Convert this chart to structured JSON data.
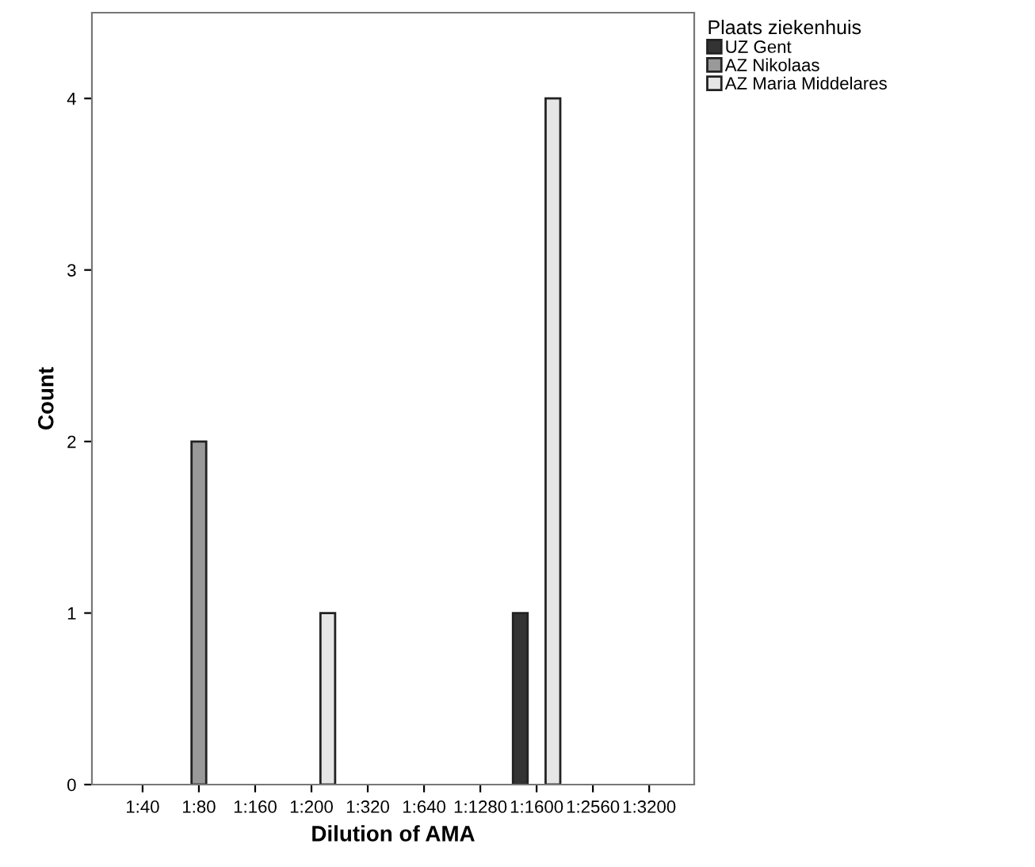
{
  "chart_data": {
    "type": "bar",
    "xlabel": "Dilution of AMA",
    "ylabel": "Count",
    "legend_title": "Plaats ziekenhuis",
    "categories": [
      "1:40",
      "1:80",
      "1:160",
      "1:200",
      "1:320",
      "1:640",
      "1:1280",
      "1:1600",
      "1:2560",
      "1:3200"
    ],
    "series": [
      {
        "name": "UZ Gent",
        "color": "#333333",
        "values": [
          0,
          0,
          0,
          0,
          0,
          0,
          0,
          1,
          0,
          0
        ]
      },
      {
        "name": "AZ Nikolaas",
        "color": "#999999",
        "values": [
          0,
          2,
          0,
          0,
          0,
          0,
          0,
          0,
          0,
          0
        ]
      },
      {
        "name": "AZ Maria Middelares",
        "color": "#e6e6e6",
        "values": [
          0,
          0,
          0,
          1,
          0,
          0,
          0,
          4,
          0,
          0
        ]
      }
    ],
    "ylim": [
      0,
      4.5
    ],
    "yticks": [
      0,
      1,
      2,
      3,
      4
    ],
    "grid": false,
    "legend": "top right"
  }
}
